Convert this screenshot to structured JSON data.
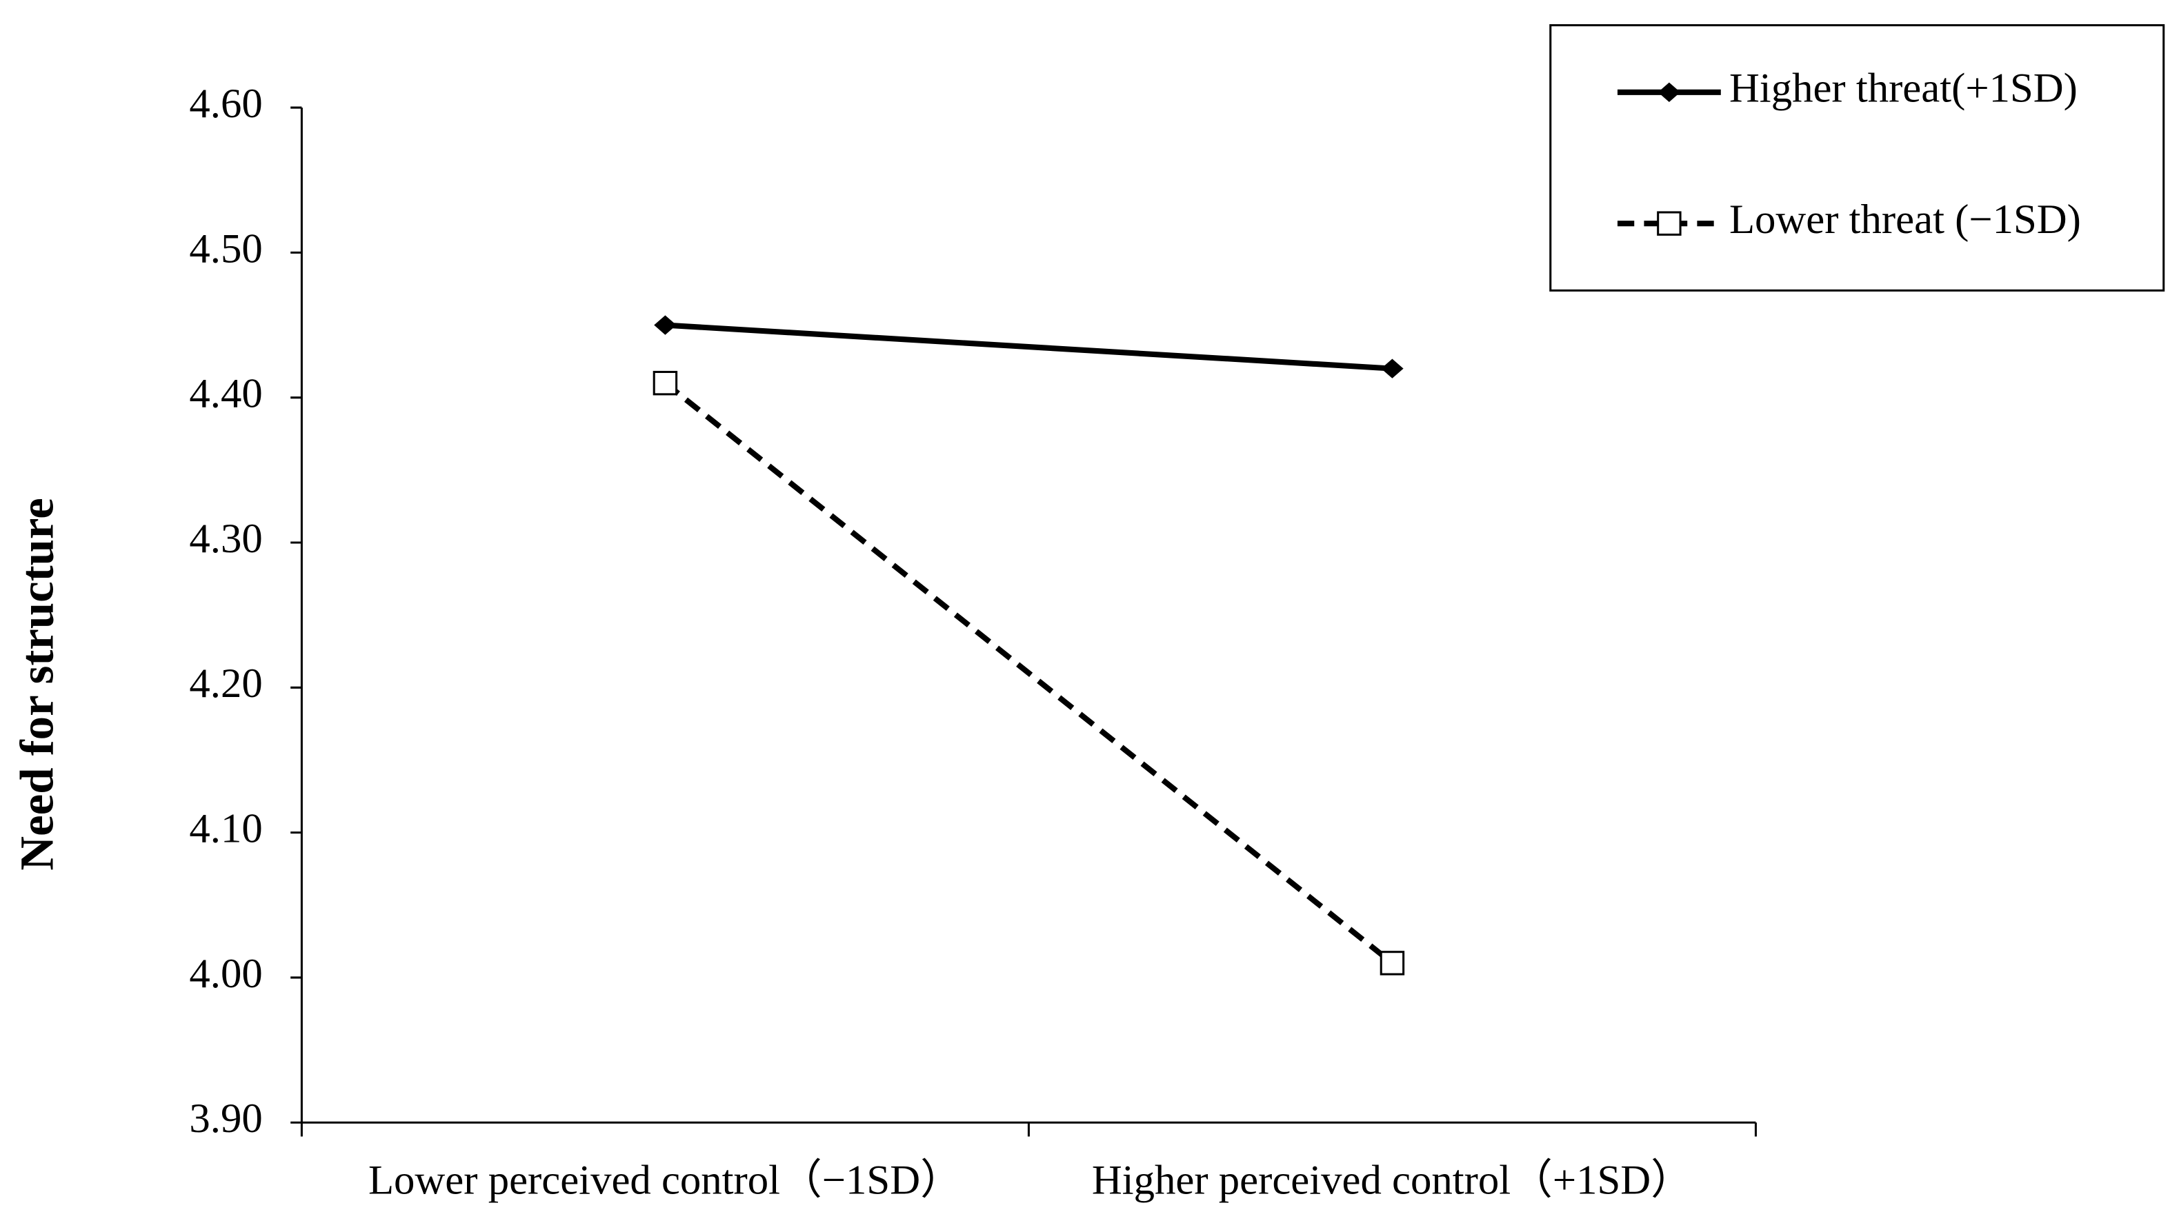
{
  "chart_data": {
    "type": "line",
    "y_label": "Need for structure",
    "categories": [
      "Lower perceived control（−1SD）",
      "Higher perceived control（+1SD）"
    ],
    "series": [
      {
        "name": "Higher threat(+1SD)",
        "color": "#000000",
        "line_style": "solid",
        "marker": "diamond",
        "values": [
          4.45,
          4.42
        ]
      },
      {
        "name": "Lower threat (−1SD)",
        "color": "#000000",
        "line_style": "dashed",
        "marker": "square",
        "values": [
          4.41,
          4.01
        ]
      }
    ],
    "ylim": [
      3.9,
      4.6
    ],
    "yticks": [
      {
        "value": 3.9,
        "label": "3.90"
      },
      {
        "value": 4.0,
        "label": "4.00"
      },
      {
        "value": 4.1,
        "label": "4.10"
      },
      {
        "value": 4.2,
        "label": "4.20"
      },
      {
        "value": 4.3,
        "label": "4.30"
      },
      {
        "value": 4.4,
        "label": "4.40"
      },
      {
        "value": 4.5,
        "label": "4.50"
      },
      {
        "value": 4.6,
        "label": "4.60"
      }
    ],
    "grid": false,
    "legend": "top-right"
  }
}
